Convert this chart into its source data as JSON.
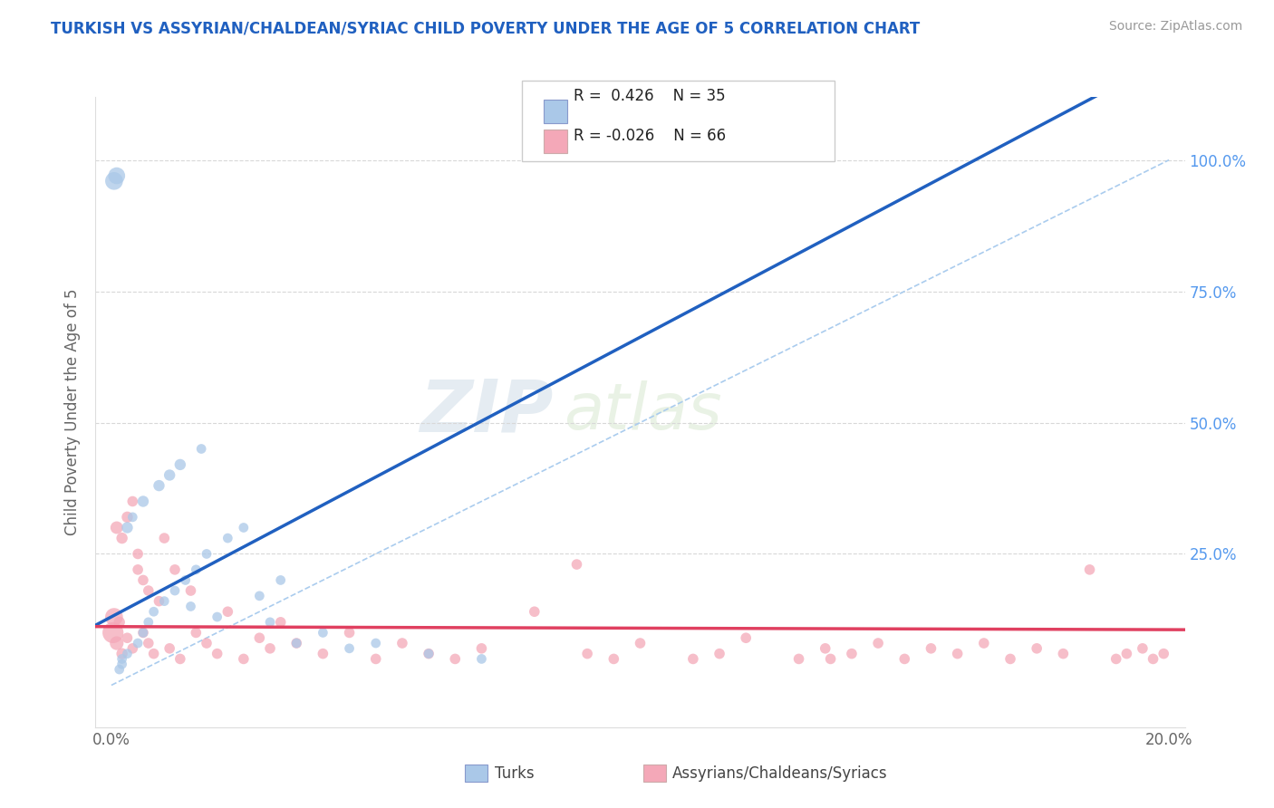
{
  "title": "TURKISH VS ASSYRIAN/CHALDEAN/SYRIAC CHILD POVERTY UNDER THE AGE OF 5 CORRELATION CHART",
  "source": "Source: ZipAtlas.com",
  "ylabel": "Child Poverty Under the Age of 5",
  "xlim": [
    0.0,
    0.2
  ],
  "ylim": [
    -0.05,
    1.1
  ],
  "turk_color": "#aac8e8",
  "assyr_color": "#f4a8b8",
  "line_turk_color": "#2060c0",
  "line_assyr_color": "#e04060",
  "r_turk": 0.426,
  "n_turk": 35,
  "r_assyr": -0.026,
  "n_assyr": 66,
  "title_color": "#2060c0",
  "source_color": "#999999",
  "diag_color": "#aaccee",
  "grid_color": "#d8d8d8",
  "turks_x": [
    0.0005,
    0.001,
    0.0015,
    0.002,
    0.002,
    0.003,
    0.003,
    0.004,
    0.005,
    0.006,
    0.006,
    0.007,
    0.008,
    0.009,
    0.01,
    0.011,
    0.012,
    0.013,
    0.014,
    0.015,
    0.016,
    0.017,
    0.018,
    0.02,
    0.022,
    0.025,
    0.028,
    0.03,
    0.032,
    0.035,
    0.04,
    0.045,
    0.05,
    0.06,
    0.07
  ],
  "turks_y": [
    0.96,
    0.97,
    0.03,
    0.04,
    0.05,
    0.06,
    0.3,
    0.32,
    0.08,
    0.35,
    0.1,
    0.12,
    0.14,
    0.38,
    0.16,
    0.4,
    0.18,
    0.42,
    0.2,
    0.15,
    0.22,
    0.45,
    0.25,
    0.13,
    0.28,
    0.3,
    0.17,
    0.12,
    0.2,
    0.08,
    0.1,
    0.07,
    0.08,
    0.06,
    0.05
  ],
  "turks_s": [
    200,
    180,
    60,
    60,
    60,
    60,
    80,
    60,
    60,
    80,
    60,
    60,
    60,
    80,
    60,
    80,
    60,
    80,
    60,
    60,
    60,
    60,
    60,
    60,
    60,
    60,
    60,
    60,
    60,
    60,
    60,
    60,
    60,
    60,
    60
  ],
  "assyr_x": [
    0.0003,
    0.0005,
    0.001,
    0.001,
    0.0015,
    0.002,
    0.002,
    0.003,
    0.003,
    0.004,
    0.004,
    0.005,
    0.005,
    0.006,
    0.006,
    0.007,
    0.007,
    0.008,
    0.009,
    0.01,
    0.011,
    0.012,
    0.013,
    0.015,
    0.016,
    0.018,
    0.02,
    0.022,
    0.025,
    0.028,
    0.03,
    0.032,
    0.035,
    0.04,
    0.045,
    0.05,
    0.055,
    0.06,
    0.065,
    0.07,
    0.08,
    0.09,
    0.095,
    0.1,
    0.11,
    0.115,
    0.12,
    0.13,
    0.135,
    0.14,
    0.145,
    0.15,
    0.155,
    0.16,
    0.165,
    0.17,
    0.175,
    0.18,
    0.185,
    0.19,
    0.192,
    0.195,
    0.197,
    0.199,
    0.136,
    0.088
  ],
  "assyr_y": [
    0.1,
    0.13,
    0.08,
    0.3,
    0.12,
    0.28,
    0.06,
    0.32,
    0.09,
    0.35,
    0.07,
    0.25,
    0.22,
    0.1,
    0.2,
    0.08,
    0.18,
    0.06,
    0.16,
    0.28,
    0.07,
    0.22,
    0.05,
    0.18,
    0.1,
    0.08,
    0.06,
    0.14,
    0.05,
    0.09,
    0.07,
    0.12,
    0.08,
    0.06,
    0.1,
    0.05,
    0.08,
    0.06,
    0.05,
    0.07,
    0.14,
    0.06,
    0.05,
    0.08,
    0.05,
    0.06,
    0.09,
    0.05,
    0.07,
    0.06,
    0.08,
    0.05,
    0.07,
    0.06,
    0.08,
    0.05,
    0.07,
    0.06,
    0.22,
    0.05,
    0.06,
    0.07,
    0.05,
    0.06,
    0.05,
    0.23
  ],
  "assyr_s": [
    280,
    200,
    120,
    100,
    80,
    80,
    80,
    80,
    70,
    70,
    70,
    70,
    70,
    70,
    70,
    70,
    70,
    70,
    70,
    70,
    70,
    70,
    70,
    70,
    70,
    70,
    70,
    70,
    70,
    70,
    70,
    70,
    70,
    70,
    70,
    70,
    70,
    70,
    70,
    70,
    70,
    70,
    70,
    70,
    70,
    70,
    70,
    70,
    70,
    70,
    70,
    70,
    70,
    70,
    70,
    70,
    70,
    70,
    70,
    70,
    70,
    70,
    70,
    70,
    70,
    70
  ]
}
